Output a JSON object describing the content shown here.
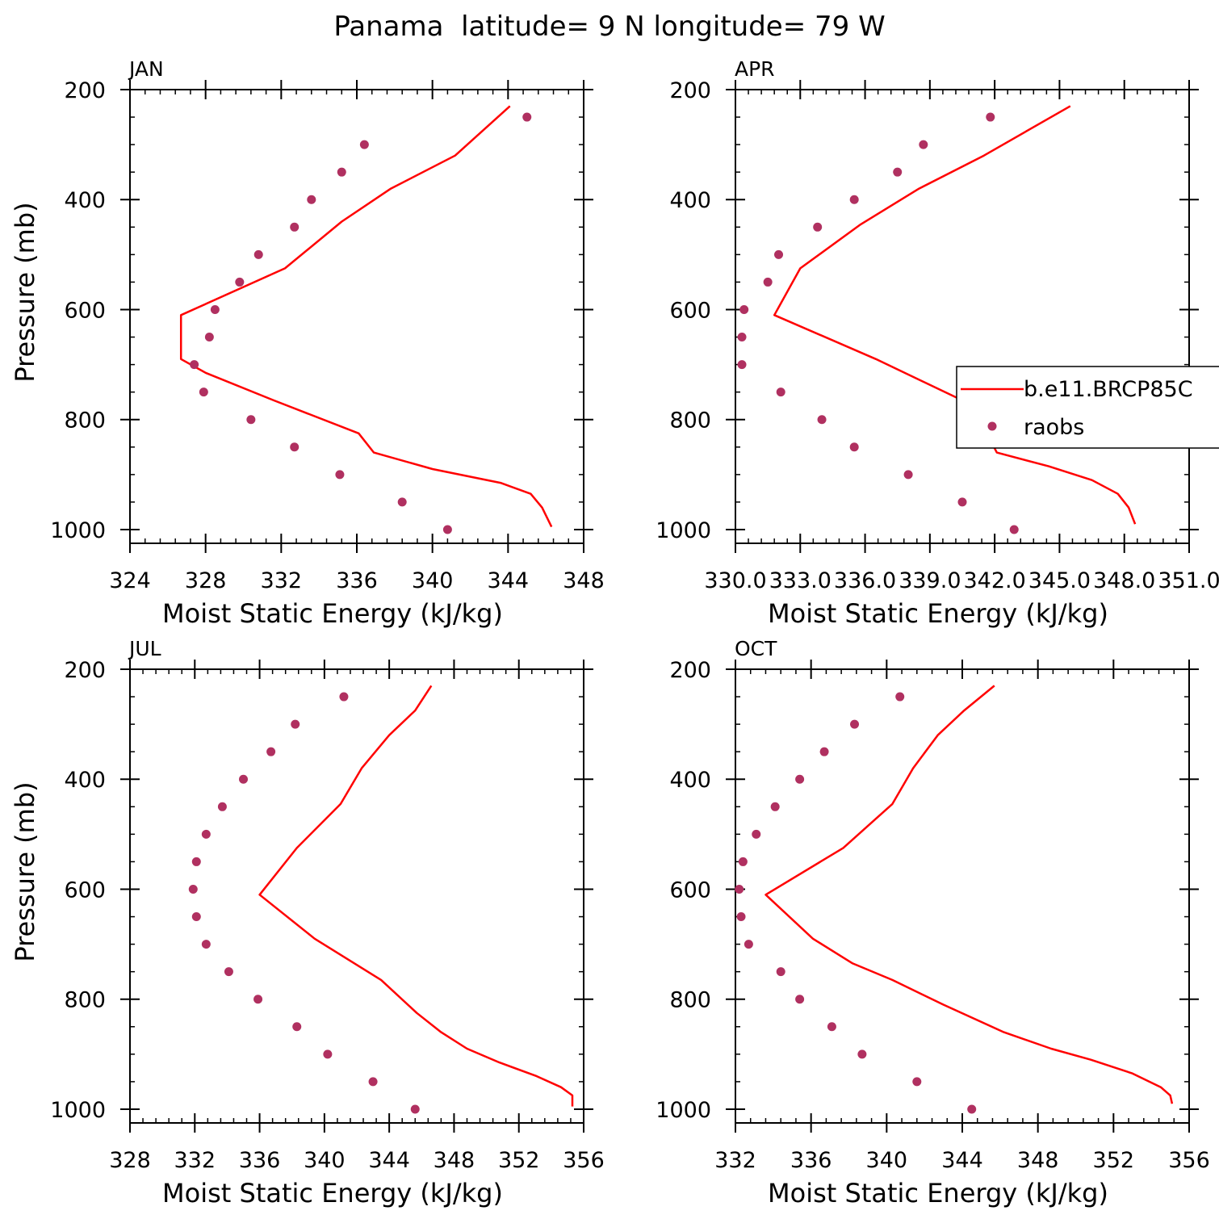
{
  "figure": {
    "title": "Panama  latitude= 9 N longitude= 79 W"
  },
  "colors": {
    "model": "#ff0000",
    "raobs": "#b03060",
    "axis": "#000000",
    "background": "#ffffff"
  },
  "legend": {
    "entries": [
      "b.e11.BRCP85C",
      "raobs"
    ],
    "placement": "right side of APR panel"
  },
  "chart_data": [
    {
      "type": "line",
      "panel_label": "JAN",
      "ylabel": "Pressure (mb)",
      "xlabel": "Moist Static Energy (kJ/kg)",
      "xlim": [
        324,
        348
      ],
      "xticks": [
        "324",
        "328",
        "332",
        "336",
        "340",
        "344",
        "348"
      ],
      "xtick_values": [
        324,
        328,
        332,
        336,
        340,
        344,
        348
      ],
      "ylim": [
        1025,
        200
      ],
      "yticks": [
        "200",
        "400",
        "600",
        "800",
        "1000"
      ],
      "series": [
        {
          "name": "b.e11.BRCP85C",
          "kind": "line",
          "points": [
            [
              344.1,
              230
            ],
            [
              341.2,
              320
            ],
            [
              337.8,
              380
            ],
            [
              335.2,
              440
            ],
            [
              332.2,
              525
            ],
            [
              326.7,
              610
            ],
            [
              326.7,
              690
            ],
            [
              328.0,
              715
            ],
            [
              331.6,
              765
            ],
            [
              336.1,
              825
            ],
            [
              336.9,
              860
            ],
            [
              340.0,
              890
            ],
            [
              343.6,
              915
            ],
            [
              345.2,
              935
            ],
            [
              345.8,
              960
            ],
            [
              346.3,
              995
            ]
          ]
        },
        {
          "name": "raobs",
          "kind": "scatter",
          "points": [
            [
              345.0,
              250
            ],
            [
              336.4,
              300
            ],
            [
              335.2,
              350
            ],
            [
              333.6,
              400
            ],
            [
              332.7,
              450
            ],
            [
              330.8,
              500
            ],
            [
              329.8,
              550
            ],
            [
              328.5,
              600
            ],
            [
              328.2,
              650
            ],
            [
              327.4,
              700
            ],
            [
              327.9,
              750
            ],
            [
              330.4,
              800
            ],
            [
              332.7,
              850
            ],
            [
              335.1,
              900
            ],
            [
              338.4,
              950
            ],
            [
              340.8,
              1000
            ]
          ]
        }
      ]
    },
    {
      "type": "line",
      "panel_label": "APR",
      "ylabel": "",
      "xlabel": "Moist Static Energy (kJ/kg)",
      "xlim": [
        330.0,
        351.0
      ],
      "xticks": [
        "330.0",
        "333.0",
        "336.0",
        "339.0",
        "342.0",
        "345.0",
        "348.0",
        "351.0"
      ],
      "xtick_values": [
        330.0,
        333.0,
        336.0,
        339.0,
        342.0,
        345.0,
        348.0,
        351.0
      ],
      "ylim": [
        1025,
        200
      ],
      "yticks": [
        "200",
        "400",
        "600",
        "800",
        "1000"
      ],
      "series": [
        {
          "name": "b.e11.BRCP85C",
          "kind": "line",
          "points": [
            [
              345.5,
              230
            ],
            [
              341.5,
              320
            ],
            [
              338.5,
              380
            ],
            [
              335.8,
              445
            ],
            [
              333.0,
              525
            ],
            [
              331.8,
              610
            ],
            [
              336.5,
              690
            ],
            [
              340.5,
              765
            ],
            [
              341.5,
              815
            ],
            [
              342.1,
              860
            ],
            [
              344.5,
              885
            ],
            [
              346.5,
              910
            ],
            [
              347.7,
              935
            ],
            [
              348.2,
              960
            ],
            [
              348.5,
              990
            ]
          ]
        },
        {
          "name": "raobs",
          "kind": "scatter",
          "points": [
            [
              341.8,
              250
            ],
            [
              338.7,
              300
            ],
            [
              337.5,
              350
            ],
            [
              335.5,
              400
            ],
            [
              333.8,
              450
            ],
            [
              332.0,
              500
            ],
            [
              331.5,
              550
            ],
            [
              330.4,
              600
            ],
            [
              330.3,
              650
            ],
            [
              330.3,
              700
            ],
            [
              332.1,
              750
            ],
            [
              334.0,
              800
            ],
            [
              335.5,
              850
            ],
            [
              338.0,
              900
            ],
            [
              340.5,
              950
            ],
            [
              342.9,
              1000
            ]
          ]
        }
      ]
    },
    {
      "type": "line",
      "panel_label": "JUL",
      "ylabel": "Pressure (mb)",
      "xlabel": "Moist Static Energy (kJ/kg)",
      "xlim": [
        328,
        356
      ],
      "xticks": [
        "328",
        "332",
        "336",
        "340",
        "344",
        "348",
        "352",
        "356"
      ],
      "xtick_values": [
        328,
        332,
        336,
        340,
        344,
        348,
        352,
        356
      ],
      "ylim": [
        1025,
        200
      ],
      "yticks": [
        "200",
        "400",
        "600",
        "800",
        "1000"
      ],
      "series": [
        {
          "name": "b.e11.BRCP85C",
          "kind": "line",
          "points": [
            [
              346.6,
              230
            ],
            [
              345.6,
              275
            ],
            [
              344.0,
              320
            ],
            [
              342.3,
              380
            ],
            [
              341.0,
              445
            ],
            [
              338.3,
              525
            ],
            [
              336.0,
              610
            ],
            [
              339.4,
              690
            ],
            [
              343.5,
              765
            ],
            [
              345.7,
              825
            ],
            [
              347.2,
              860
            ],
            [
              348.8,
              890
            ],
            [
              350.8,
              915
            ],
            [
              353.1,
              940
            ],
            [
              354.6,
              960
            ],
            [
              355.3,
              975
            ],
            [
              355.3,
              995
            ]
          ]
        },
        {
          "name": "raobs",
          "kind": "scatter",
          "points": [
            [
              341.2,
              250
            ],
            [
              338.2,
              300
            ],
            [
              336.7,
              350
            ],
            [
              335.0,
              400
            ],
            [
              333.7,
              450
            ],
            [
              332.7,
              500
            ],
            [
              332.1,
              550
            ],
            [
              331.9,
              600
            ],
            [
              332.1,
              650
            ],
            [
              332.7,
              700
            ],
            [
              334.1,
              750
            ],
            [
              335.9,
              800
            ],
            [
              338.3,
              850
            ],
            [
              340.2,
              900
            ],
            [
              343.0,
              950
            ],
            [
              345.6,
              1000
            ]
          ]
        }
      ]
    },
    {
      "type": "line",
      "panel_label": "OCT",
      "ylabel": "",
      "xlabel": "Moist Static Energy (kJ/kg)",
      "xlim": [
        332,
        356
      ],
      "xticks": [
        "332",
        "336",
        "340",
        "344",
        "348",
        "352",
        "356"
      ],
      "xtick_values": [
        332,
        336,
        340,
        344,
        348,
        352,
        356
      ],
      "ylim": [
        1025,
        200
      ],
      "yticks": [
        "200",
        "400",
        "600",
        "800",
        "1000"
      ],
      "series": [
        {
          "name": "b.e11.BRCP85C",
          "kind": "line",
          "points": [
            [
              345.7,
              230
            ],
            [
              344.1,
              275
            ],
            [
              342.7,
              320
            ],
            [
              341.4,
              380
            ],
            [
              340.3,
              445
            ],
            [
              337.7,
              525
            ],
            [
              333.6,
              610
            ],
            [
              336.1,
              690
            ],
            [
              338.2,
              735
            ],
            [
              340.3,
              765
            ],
            [
              343.0,
              810
            ],
            [
              346.2,
              860
            ],
            [
              348.7,
              890
            ],
            [
              350.8,
              910
            ],
            [
              353.0,
              935
            ],
            [
              354.5,
              960
            ],
            [
              355.0,
              975
            ],
            [
              355.1,
              990
            ]
          ]
        },
        {
          "name": "raobs",
          "kind": "scatter",
          "points": [
            [
              340.7,
              250
            ],
            [
              338.3,
              300
            ],
            [
              336.7,
              350
            ],
            [
              335.4,
              400
            ],
            [
              334.1,
              450
            ],
            [
              333.1,
              500
            ],
            [
              332.4,
              550
            ],
            [
              332.2,
              600
            ],
            [
              332.3,
              650
            ],
            [
              332.7,
              700
            ],
            [
              334.4,
              750
            ],
            [
              335.4,
              800
            ],
            [
              337.1,
              850
            ],
            [
              338.7,
              900
            ],
            [
              341.6,
              950
            ],
            [
              344.5,
              1000
            ]
          ]
        }
      ]
    }
  ]
}
